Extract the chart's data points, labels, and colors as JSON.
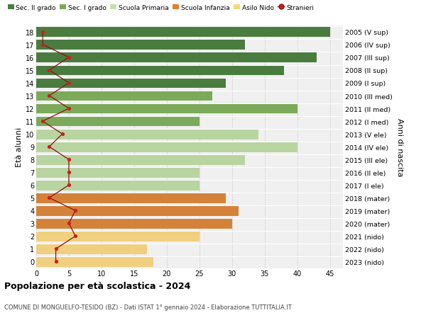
{
  "ages": [
    18,
    17,
    16,
    15,
    14,
    13,
    12,
    11,
    10,
    9,
    8,
    7,
    6,
    5,
    4,
    3,
    2,
    1,
    0
  ],
  "bar_values": [
    45,
    32,
    43,
    38,
    29,
    27,
    40,
    25,
    34,
    40,
    32,
    25,
    25,
    29,
    31,
    30,
    25,
    17,
    18
  ],
  "bar_colors": [
    "#4a7c3f",
    "#4a7c3f",
    "#4a7c3f",
    "#4a7c3f",
    "#4a7c3f",
    "#7aaa5a",
    "#7aaa5a",
    "#7aaa5a",
    "#b8d4a0",
    "#b8d4a0",
    "#b8d4a0",
    "#b8d4a0",
    "#b8d4a0",
    "#d4823a",
    "#d4823a",
    "#d4823a",
    "#f0d080",
    "#f0d080",
    "#f0d080"
  ],
  "stranieri_values": [
    1,
    1,
    5,
    2,
    5,
    2,
    5,
    1,
    4,
    2,
    5,
    5,
    5,
    2,
    6,
    5,
    6,
    3,
    3
  ],
  "right_labels": [
    "2005 (V sup)",
    "2006 (IV sup)",
    "2007 (III sup)",
    "2008 (II sup)",
    "2009 (I sup)",
    "2010 (III med)",
    "2011 (II med)",
    "2012 (I med)",
    "2013 (V ele)",
    "2014 (IV ele)",
    "2015 (III ele)",
    "2016 (II ele)",
    "2017 (I ele)",
    "2018 (mater)",
    "2019 (mater)",
    "2020 (mater)",
    "2021 (nido)",
    "2022 (nido)",
    "2023 (nido)"
  ],
  "legend_labels": [
    "Sec. II grado",
    "Sec. I grado",
    "Scuola Primaria",
    "Scuola Infanzia",
    "Asilo Nido",
    "Stranieri"
  ],
  "legend_colors": [
    "#4a7c3f",
    "#7aaa5a",
    "#c8ddb0",
    "#e08030",
    "#f5d878",
    "#b22222"
  ],
  "title": "Popolazione per età scolastica - 2024",
  "subtitle": "COMUNE DI MONGUELFO-TESIDO (BZ) - Dati ISTAT 1° gennaio 2024 - Elaborazione TUTTITALIA.IT",
  "ylabel_left": "Età alunni",
  "ylabel_right": "Anni di nascita",
  "xlim": [
    0,
    47
  ],
  "bg_color": "#f0f0f0"
}
